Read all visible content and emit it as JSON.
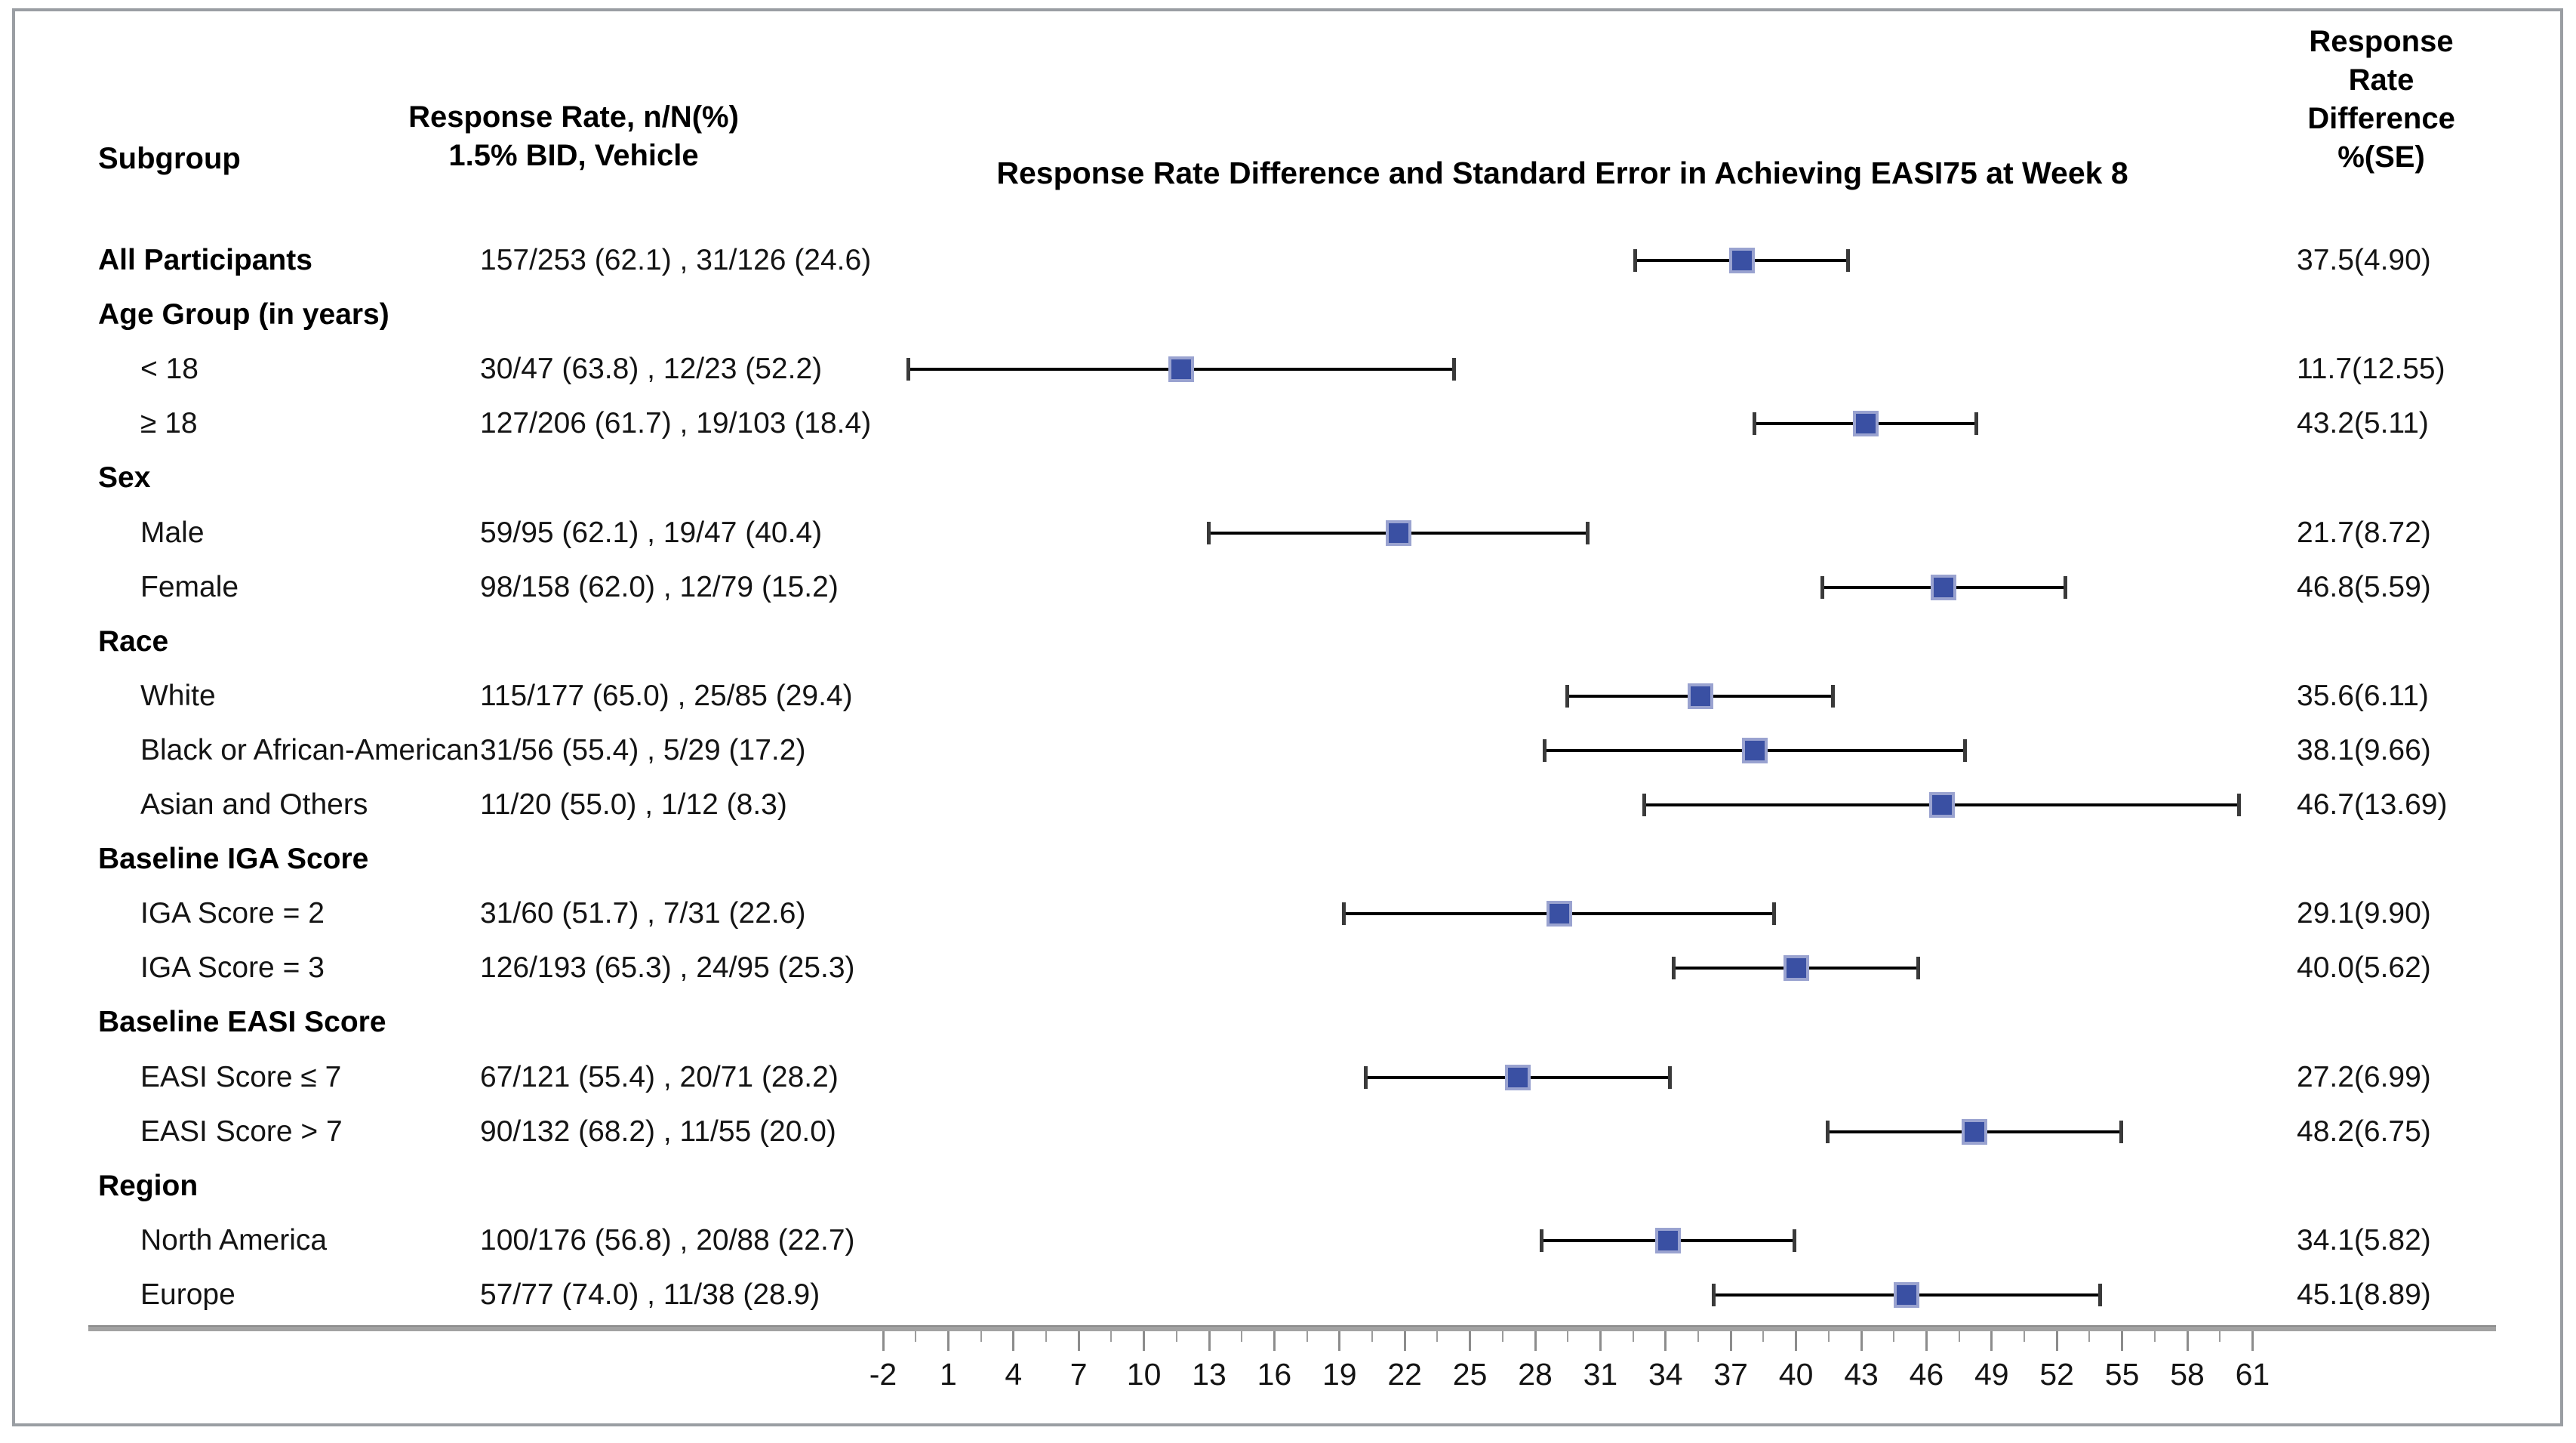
{
  "header": {
    "subgroup": "Subgroup",
    "rate_line1": "Response Rate, n/N(%)",
    "rate_line2": "1.5% BID, Vehicle",
    "plot_title": "Response Rate Difference and Standard Error in Achieving EASI75 at Week 8",
    "diff_line1": "Response",
    "diff_line2": "Rate",
    "diff_line3": "Difference",
    "diff_line4": "%(SE)"
  },
  "colors": {
    "marker_fill": "#3A50A3",
    "marker_edge": "#9aa3d0",
    "whisker": "#000000",
    "whisker_cap": "#3a3a3a",
    "axis_rule": "#a2a2a2",
    "frame": "#9a9ea3",
    "text": "#141414"
  },
  "rows": [
    {
      "label": "All Participants",
      "bold": true,
      "indent": false,
      "rate": "157/253 (62.1) , 31/126 (24.6)",
      "diff": "37.5(4.90)",
      "mean": 37.5,
      "se": 4.9
    },
    {
      "label": "Age Group (in years)",
      "bold": true,
      "indent": false,
      "rate": null,
      "diff": null,
      "mean": null,
      "se": null
    },
    {
      "label": "< 18",
      "bold": false,
      "indent": true,
      "rate": "30/47 (63.8) , 12/23 (52.2)",
      "diff": "11.7(12.55)",
      "mean": 11.7,
      "se": 12.55
    },
    {
      "label": "≥ 18",
      "bold": false,
      "indent": true,
      "rate": "127/206 (61.7) , 19/103 (18.4)",
      "diff": "43.2(5.11)",
      "mean": 43.2,
      "se": 5.11
    },
    {
      "label": "Sex",
      "bold": true,
      "indent": false,
      "rate": null,
      "diff": null,
      "mean": null,
      "se": null
    },
    {
      "label": "Male",
      "bold": false,
      "indent": true,
      "rate": "59/95 (62.1) , 19/47 (40.4)",
      "diff": "21.7(8.72)",
      "mean": 21.7,
      "se": 8.72
    },
    {
      "label": "Female",
      "bold": false,
      "indent": true,
      "rate": "98/158 (62.0) , 12/79 (15.2)",
      "diff": "46.8(5.59)",
      "mean": 46.8,
      "se": 5.59
    },
    {
      "label": "Race",
      "bold": true,
      "indent": false,
      "rate": null,
      "diff": null,
      "mean": null,
      "se": null
    },
    {
      "label": "White",
      "bold": false,
      "indent": true,
      "rate": "115/177 (65.0) , 25/85 (29.4)",
      "diff": "35.6(6.11)",
      "mean": 35.6,
      "se": 6.11
    },
    {
      "label": "Black or African-American",
      "bold": false,
      "indent": true,
      "rate": "31/56 (55.4) , 5/29 (17.2)",
      "diff": "38.1(9.66)",
      "mean": 38.1,
      "se": 9.66
    },
    {
      "label": "Asian and Others",
      "bold": false,
      "indent": true,
      "rate": "11/20 (55.0) , 1/12 (8.3)",
      "diff": "46.7(13.69)",
      "mean": 46.7,
      "se": 13.69
    },
    {
      "label": "Baseline IGA Score",
      "bold": true,
      "indent": false,
      "rate": null,
      "diff": null,
      "mean": null,
      "se": null
    },
    {
      "label": "IGA Score = 2",
      "bold": false,
      "indent": true,
      "rate": "31/60 (51.7) , 7/31 (22.6)",
      "diff": "29.1(9.90)",
      "mean": 29.1,
      "se": 9.9
    },
    {
      "label": "IGA Score = 3",
      "bold": false,
      "indent": true,
      "rate": "126/193 (65.3) , 24/95 (25.3)",
      "diff": "40.0(5.62)",
      "mean": 40.0,
      "se": 5.62
    },
    {
      "label": "Baseline EASI Score",
      "bold": true,
      "indent": false,
      "rate": null,
      "diff": null,
      "mean": null,
      "se": null
    },
    {
      "label": "EASI Score ≤ 7",
      "bold": false,
      "indent": true,
      "rate": "67/121 (55.4) , 20/71 (28.2)",
      "diff": "27.2(6.99)",
      "mean": 27.2,
      "se": 6.99
    },
    {
      "label": "EASI Score > 7",
      "bold": false,
      "indent": true,
      "rate": "90/132 (68.2) , 11/55 (20.0)",
      "diff": "48.2(6.75)",
      "mean": 48.2,
      "se": 6.75
    },
    {
      "label": "Region",
      "bold": true,
      "indent": false,
      "rate": null,
      "diff": null,
      "mean": null,
      "se": null
    },
    {
      "label": "North America",
      "bold": false,
      "indent": true,
      "rate": "100/176 (56.8) , 20/88 (22.7)",
      "diff": "34.1(5.82)",
      "mean": 34.1,
      "se": 5.82
    },
    {
      "label": "Europe",
      "bold": false,
      "indent": true,
      "rate": "57/77 (74.0) , 11/38 (28.9)",
      "diff": "45.1(8.89)",
      "mean": 45.1,
      "se": 8.89
    }
  ],
  "axis": {
    "min": -2,
    "max": 61,
    "tick_step": 3,
    "minor_tick_step": 1.5,
    "ticks": [
      -2,
      1,
      4,
      7,
      10,
      13,
      16,
      19,
      22,
      25,
      28,
      31,
      34,
      37,
      40,
      43,
      46,
      49,
      52,
      55,
      58,
      61
    ]
  },
  "chart_data": {
    "type": "scatter",
    "subtype": "forest-plot",
    "title": "Response Rate Difference and Standard Error in Achieving EASI75 at Week 8",
    "xlabel": "",
    "ylabel": "",
    "xlim": [
      -2,
      61
    ],
    "x_ticks": [
      -2,
      1,
      4,
      7,
      10,
      13,
      16,
      19,
      22,
      25,
      28,
      31,
      34,
      37,
      40,
      43,
      46,
      49,
      52,
      55,
      58,
      61
    ],
    "error_bar_rule": "mean ± 1 SE",
    "legend": "none",
    "grid": false,
    "points": [
      {
        "subgroup": "All Participants",
        "mean": 37.5,
        "se": 4.9,
        "low": 32.6,
        "high": 42.4
      },
      {
        "subgroup": "< 18",
        "mean": 11.7,
        "se": 12.55,
        "low": -0.85,
        "high": 24.25
      },
      {
        "subgroup": "≥ 18",
        "mean": 43.2,
        "se": 5.11,
        "low": 38.09,
        "high": 48.31
      },
      {
        "subgroup": "Male",
        "mean": 21.7,
        "se": 8.72,
        "low": 12.98,
        "high": 30.42
      },
      {
        "subgroup": "Female",
        "mean": 46.8,
        "se": 5.59,
        "low": 41.21,
        "high": 52.39
      },
      {
        "subgroup": "White",
        "mean": 35.6,
        "se": 6.11,
        "low": 29.49,
        "high": 41.71
      },
      {
        "subgroup": "Black or African-American",
        "mean": 38.1,
        "se": 9.66,
        "low": 28.44,
        "high": 47.76
      },
      {
        "subgroup": "Asian and Others",
        "mean": 46.7,
        "se": 13.69,
        "low": 33.01,
        "high": 60.39
      },
      {
        "subgroup": "IGA Score = 2",
        "mean": 29.1,
        "se": 9.9,
        "low": 19.2,
        "high": 39.0
      },
      {
        "subgroup": "IGA Score = 3",
        "mean": 40.0,
        "se": 5.62,
        "low": 34.38,
        "high": 45.62
      },
      {
        "subgroup": "EASI Score ≤ 7",
        "mean": 27.2,
        "se": 6.99,
        "low": 20.21,
        "high": 34.19
      },
      {
        "subgroup": "EASI Score > 7",
        "mean": 48.2,
        "se": 6.75,
        "low": 41.45,
        "high": 54.95
      },
      {
        "subgroup": "North America",
        "mean": 34.1,
        "se": 5.82,
        "low": 28.28,
        "high": 39.92
      },
      {
        "subgroup": "Europe",
        "mean": 45.1,
        "se": 8.89,
        "low": 36.21,
        "high": 53.99
      }
    ]
  }
}
